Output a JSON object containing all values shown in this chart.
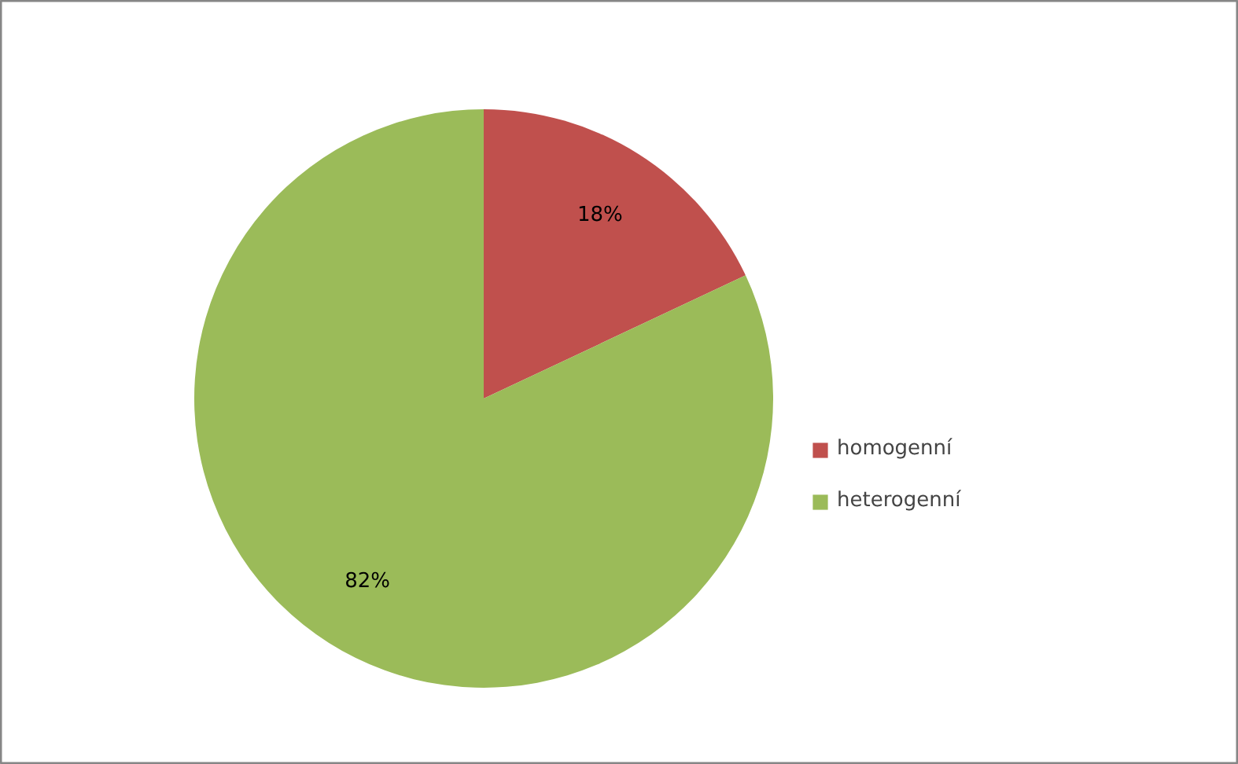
{
  "chart_data": {
    "type": "pie",
    "categories": [
      "homogenní",
      "heterogenní"
    ],
    "values": [
      18,
      82
    ],
    "colors": [
      "#c0504d",
      "#9bbb59"
    ],
    "value_labels": [
      "18%",
      "82%"
    ],
    "legend": "right"
  }
}
